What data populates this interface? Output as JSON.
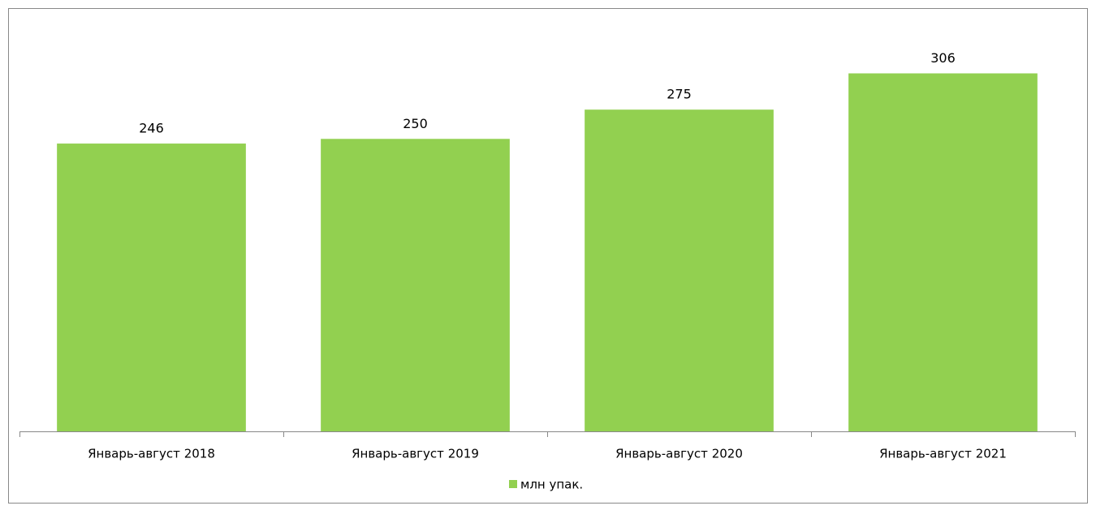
{
  "chart_data": {
    "type": "bar",
    "categories": [
      "Январь-август 2018",
      "Январь-август 2019",
      "Январь-август 2020",
      "Январь-август 2021"
    ],
    "series": [
      {
        "name": "млн упак.",
        "color": "#92d050",
        "values": [
          246,
          250,
          275,
          306
        ]
      }
    ],
    "ylim": [
      0,
      350
    ],
    "legend": "bottom"
  }
}
